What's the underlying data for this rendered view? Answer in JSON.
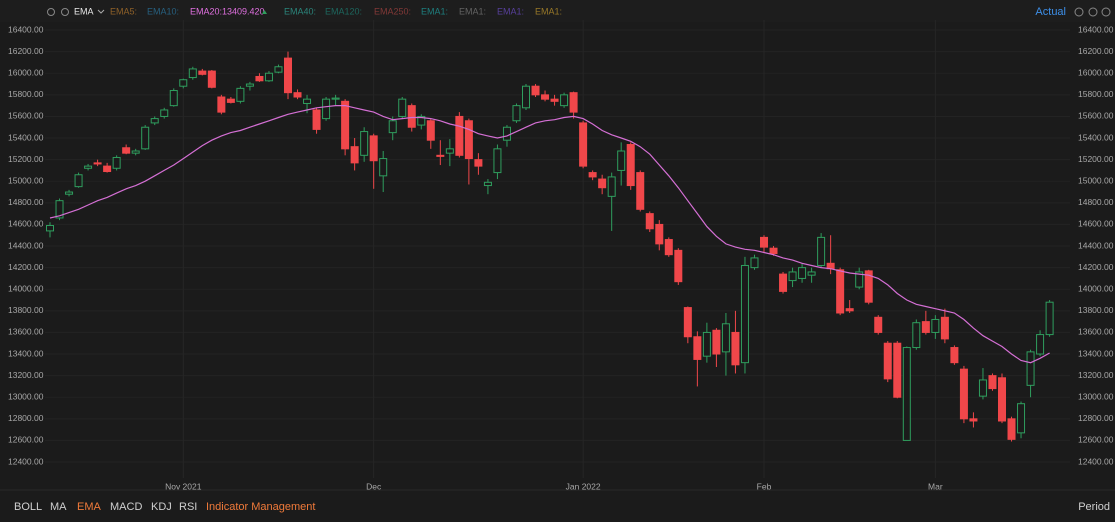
{
  "toolbar": {
    "indicator": "EMA",
    "legend": [
      {
        "name": "EMA5:",
        "color": "#b4772c"
      },
      {
        "name": "EMA10:",
        "color": "#2a76a0"
      },
      {
        "name": "EMA20:",
        "color": "#e070e0",
        "value": "13409.420"
      },
      {
        "name": "EMA40:",
        "color": "#2fa79a"
      },
      {
        "name": "EMA120:",
        "color": "#1d7f73"
      },
      {
        "name": "EMA250:",
        "color": "#a3413f"
      },
      {
        "name": "EMA1:",
        "color": "#1e9e9e"
      },
      {
        "name": "EMA1:",
        "color": "#7a7a7a"
      },
      {
        "name": "EMA1:",
        "color": "#6a4bc4"
      },
      {
        "name": "EMA1:",
        "color": "#c0962c"
      }
    ],
    "mode": "Actual"
  },
  "chart_data": {
    "type": "candlestick",
    "categories": [
      null,
      null,
      null,
      null,
      null,
      null,
      null,
      null,
      null,
      null,
      null,
      null,
      null,
      null,
      "Nov 2021",
      null,
      null,
      null,
      null,
      null,
      null,
      null,
      null,
      null,
      null,
      null,
      null,
      null,
      null,
      null,
      null,
      null,
      null,
      null,
      "Dec",
      null,
      null,
      null,
      null,
      null,
      null,
      null,
      null,
      null,
      null,
      null,
      null,
      null,
      null,
      null,
      null,
      null,
      null,
      null,
      null,
      null,
      "Jan 2022",
      null,
      null,
      null,
      null,
      null,
      null,
      null,
      null,
      null,
      null,
      null,
      null,
      null,
      null,
      null,
      null,
      null,
      null,
      "Feb",
      null,
      null,
      null,
      null,
      null,
      null,
      null,
      null,
      null,
      null,
      null,
      null,
      null,
      null,
      null,
      null,
      null,
      "Mar",
      null,
      null,
      null,
      null,
      null,
      null,
      null,
      null,
      null,
      null,
      null,
      null
    ],
    "open": [
      14540,
      14660,
      14880,
      14950,
      15120,
      15170,
      15140,
      15120,
      15310,
      15260,
      15300,
      15540,
      15600,
      15700,
      15880,
      15960,
      16020,
      16020,
      15780,
      15760,
      15740,
      15880,
      15970,
      15930,
      16010,
      16140,
      15820,
      15720,
      15660,
      15580,
      15760,
      15740,
      15320,
      15240,
      15420,
      15050,
      15450,
      15600,
      15700,
      15520,
      15560,
      15240,
      15260,
      15600,
      15560,
      15200,
      14960,
      15080,
      15380,
      15560,
      15680,
      15880,
      15800,
      15760,
      15700,
      15820,
      15540,
      15080,
      15020,
      14860,
      15100,
      15340,
      15080,
      14700,
      14600,
      14460,
      14360,
      13830,
      13560,
      13380,
      13620,
      13420,
      13600,
      13320,
      14200,
      14480,
      14380,
      14140,
      14080,
      14100,
      14130,
      14220,
      14240,
      14180,
      13820,
      14020,
      14170,
      13740,
      13500,
      13500,
      12600,
      13460,
      13700,
      13600,
      13740,
      13460,
      13260,
      12800,
      13010,
      13200,
      13180,
      12800,
      12670,
      13110,
      13400,
      13580
    ],
    "high": [
      14620,
      14840,
      14920,
      15080,
      15160,
      15200,
      15170,
      15240,
      15340,
      15300,
      15520,
      15600,
      15680,
      15860,
      15950,
      16060,
      16040,
      16030,
      15800,
      15780,
      15880,
      15920,
      16000,
      16020,
      16080,
      16200,
      15850,
      15800,
      15680,
      15780,
      15800,
      15760,
      15400,
      15500,
      15440,
      15280,
      15600,
      15780,
      15720,
      15620,
      15580,
      15380,
      15390,
      15640,
      15580,
      15260,
      15020,
      15340,
      15520,
      15720,
      15900,
      15900,
      15840,
      15800,
      15820,
      15830,
      15560,
      15100,
      15060,
      15080,
      15360,
      15360,
      15100,
      14720,
      14640,
      14480,
      14380,
      13840,
      13610,
      13690,
      13640,
      13780,
      13800,
      14300,
      14320,
      14500,
      14400,
      14160,
      14200,
      14240,
      14200,
      14520,
      14500,
      14200,
      13900,
      14200,
      14180,
      13760,
      13520,
      13520,
      13470,
      13720,
      13800,
      13760,
      13820,
      13480,
      13290,
      12860,
      13270,
      13220,
      13220,
      12820,
      12960,
      13440,
      13620,
      13900
    ],
    "low": [
      14480,
      14640,
      14860,
      14940,
      15100,
      15140,
      15080,
      15100,
      15250,
      15240,
      15290,
      15520,
      15580,
      15690,
      15860,
      15940,
      15980,
      15860,
      15620,
      15720,
      15720,
      15840,
      15920,
      15920,
      16000,
      15760,
      15760,
      15630,
      15440,
      15560,
      15700,
      15240,
      15100,
      15180,
      14930,
      14900,
      15380,
      15580,
      15460,
      15480,
      15300,
      15150,
      15140,
      15220,
      14970,
      15060,
      14880,
      15020,
      15320,
      15540,
      15660,
      15780,
      15740,
      15700,
      15680,
      15580,
      15120,
      15010,
      14880,
      14540,
      14960,
      14920,
      14720,
      14530,
      14360,
      14300,
      14040,
      13500,
      13100,
      13320,
      13280,
      13200,
      13220,
      13220,
      14180,
      14340,
      14310,
      13960,
      14020,
      14060,
      14060,
      14200,
      14140,
      13760,
      13780,
      14000,
      13860,
      13580,
      13140,
      12990,
      12600,
      13440,
      13580,
      13540,
      13500,
      13300,
      12760,
      12720,
      12980,
      13060,
      12760,
      12590,
      12620,
      13000,
      13380,
      13560
    ],
    "close": [
      14590,
      14820,
      14900,
      15060,
      15140,
      15160,
      15090,
      15220,
      15260,
      15280,
      15500,
      15580,
      15660,
      15840,
      15940,
      16040,
      15990,
      15870,
      15640,
      15730,
      15860,
      15900,
      15930,
      16000,
      16060,
      15820,
      15780,
      15760,
      15480,
      15760,
      15770,
      15300,
      15170,
      15460,
      15190,
      15210,
      15560,
      15760,
      15500,
      15600,
      15380,
      15230,
      15300,
      15240,
      15210,
      15140,
      14990,
      15300,
      15500,
      15700,
      15880,
      15800,
      15760,
      15740,
      15800,
      15640,
      15140,
      15040,
      14940,
      15040,
      15280,
      14960,
      14740,
      14560,
      14420,
      14320,
      14070,
      13560,
      13350,
      13600,
      13400,
      13680,
      13300,
      14220,
      14290,
      14390,
      14330,
      13980,
      14160,
      14200,
      14160,
      14480,
      14190,
      13780,
      13800,
      14160,
      13880,
      13600,
      13170,
      13000,
      13460,
      13690,
      13600,
      13720,
      13540,
      13320,
      12800,
      12780,
      13160,
      13080,
      12780,
      12610,
      12940,
      13420,
      13580,
      13880
    ],
    "up_color": "#2f9e5e",
    "down_color": "#f0474a",
    "ema": {
      "color": "#d46fd4",
      "values": [
        14660,
        14680,
        14710,
        14740,
        14780,
        14820,
        14850,
        14890,
        14930,
        14960,
        15000,
        15050,
        15100,
        15150,
        15210,
        15270,
        15330,
        15380,
        15420,
        15450,
        15470,
        15500,
        15530,
        15560,
        15590,
        15620,
        15640,
        15660,
        15680,
        15690,
        15700,
        15700,
        15680,
        15660,
        15640,
        15600,
        15570,
        15580,
        15590,
        15590,
        15580,
        15560,
        15530,
        15510,
        15480,
        15440,
        15420,
        15400,
        15420,
        15460,
        15500,
        15540,
        15560,
        15570,
        15590,
        15600,
        15580,
        15530,
        15470,
        15430,
        15400,
        15370,
        15320,
        15250,
        15150,
        15050,
        14940,
        14820,
        14700,
        14580,
        14490,
        14420,
        14390,
        14370,
        14360,
        14340,
        14320,
        14290,
        14270,
        14240,
        14220,
        14200,
        14190,
        14170,
        14150,
        14140,
        14130,
        14100,
        14040,
        13960,
        13900,
        13860,
        13840,
        13820,
        13800,
        13780,
        13720,
        13640,
        13570,
        13520,
        13470,
        13400,
        13340,
        13320,
        13360,
        13409.42
      ]
    },
    "ylim": [
      12252,
      16493
    ],
    "yticks": [
      {
        "value": 16400,
        "label": "16400.00"
      },
      {
        "value": 16200,
        "label": "16200.00"
      },
      {
        "value": 16000,
        "label": "16000.00"
      },
      {
        "value": 15800,
        "label": "15800.00"
      },
      {
        "value": 15600,
        "label": "15600.00"
      },
      {
        "value": 15400,
        "label": "15400.00"
      },
      {
        "value": 15200,
        "label": "15200.00"
      },
      {
        "value": 15000,
        "label": "15000.00"
      },
      {
        "value": 14800,
        "label": "14800.00"
      },
      {
        "value": 14600,
        "label": "14600.00"
      },
      {
        "value": 14400,
        "label": "14400.00"
      },
      {
        "value": 14200,
        "label": "14200.00"
      },
      {
        "value": 14000,
        "label": "14000.00"
      },
      {
        "value": 13800,
        "label": "13800.00"
      },
      {
        "value": 13600,
        "label": "13600.00"
      },
      {
        "value": 13400,
        "label": "13400.00"
      },
      {
        "value": 13200,
        "label": "13200.00"
      },
      {
        "value": 13000,
        "label": "13000.00"
      },
      {
        "value": 12800,
        "label": "12800.00"
      },
      {
        "value": 12600,
        "label": "12600.00"
      },
      {
        "value": 12400,
        "label": "12400.00"
      }
    ],
    "grid": true
  },
  "tabs": [
    "BOLL",
    "MA",
    "EMA",
    "MACD",
    "KDJ",
    "RSI"
  ],
  "active_tab": 2,
  "management": "Indicator Management",
  "period": "Period"
}
